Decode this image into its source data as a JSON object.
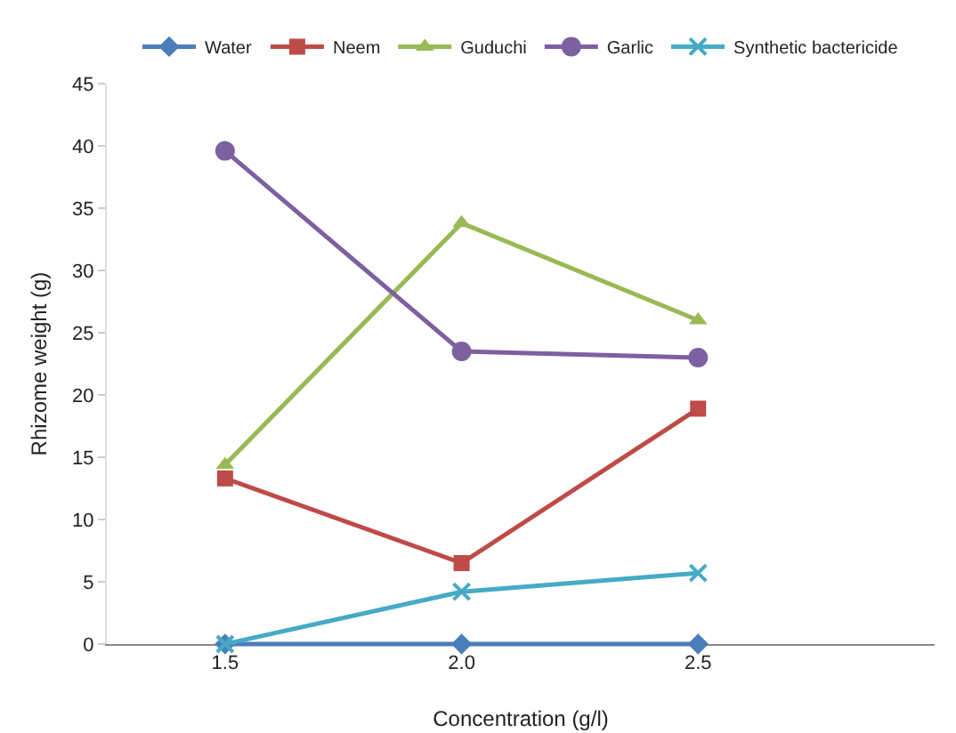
{
  "chart_data": {
    "type": "line",
    "xlabel": "Concentration (g/l)",
    "ylabel": "Rhizome weight (g)",
    "categories": [
      "1.5",
      "2.0",
      "2.5"
    ],
    "ylim": [
      0,
      45
    ],
    "yticks": [
      0,
      5,
      10,
      15,
      20,
      25,
      30,
      35,
      40,
      45
    ],
    "grid": false,
    "legend": "top",
    "series": [
      {
        "name": "Water",
        "color": "#4a7ebb",
        "marker": "diamond",
        "values": [
          0,
          0,
          0
        ]
      },
      {
        "name": "Neem",
        "color": "#be4b48",
        "marker": "square",
        "values": [
          13.3,
          6.5,
          18.9
        ]
      },
      {
        "name": "Guduchi",
        "color": "#98b954",
        "marker": "triangle",
        "values": [
          14.4,
          33.8,
          26
        ]
      },
      {
        "name": "Garlic",
        "color": "#7d60a0",
        "marker": "circle",
        "values": [
          39.6,
          23.5,
          23
        ]
      },
      {
        "name": "Synthetic bactericide",
        "color": "#46aac5",
        "marker": "cross",
        "values": [
          0,
          4.2,
          5.7
        ]
      }
    ]
  }
}
